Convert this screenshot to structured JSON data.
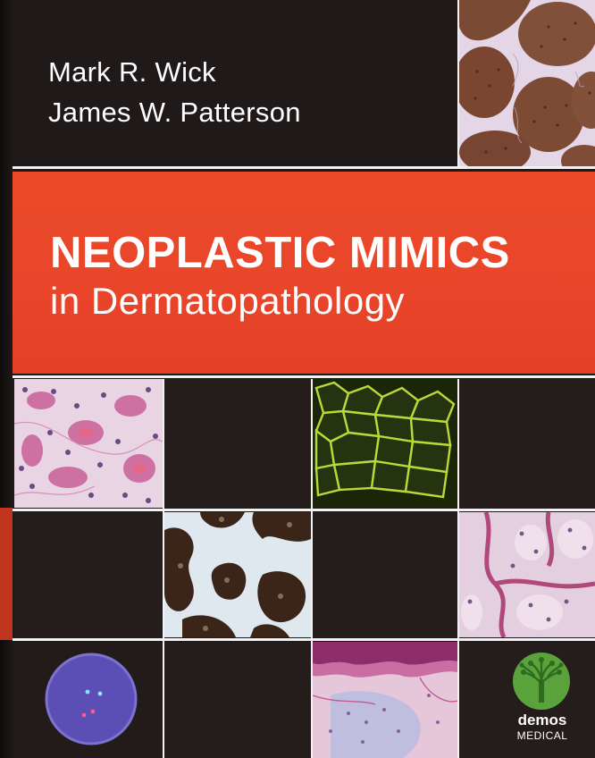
{
  "cover": {
    "authors": [
      "Mark R. Wick",
      "James W. Patterson"
    ],
    "title": "NEOPLASTIC MIMICS",
    "subtitle": "in Dermatopathology",
    "publisher": {
      "name": "demos",
      "imprint": "MEDICAL"
    }
  },
  "colors": {
    "band": "#e8452a",
    "background": "#201919",
    "logo_green": "#5aa33c"
  }
}
